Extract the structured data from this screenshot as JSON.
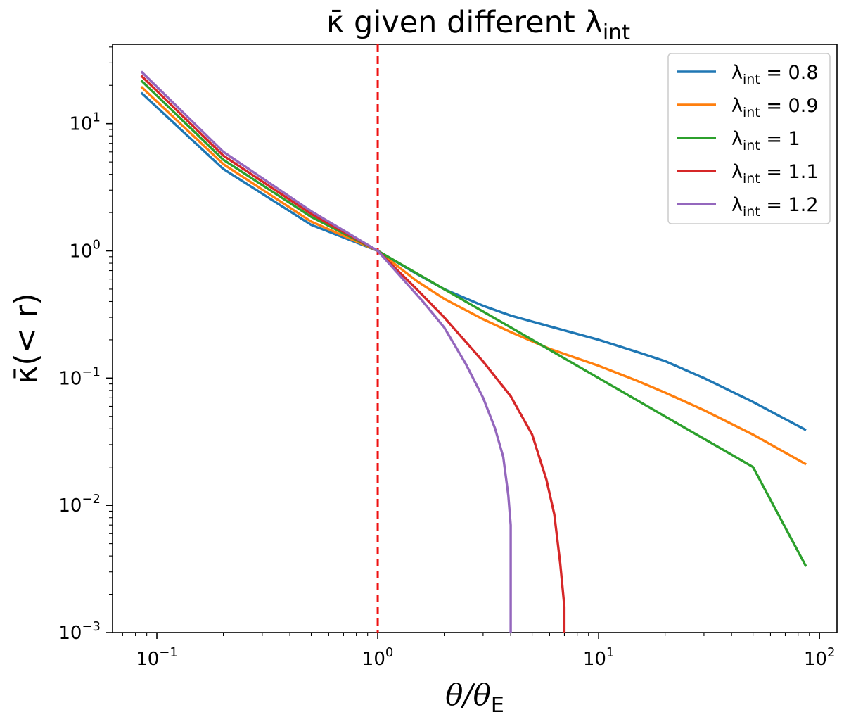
{
  "chart_data": {
    "type": "line",
    "title_main": "κ̄ given different λ",
    "title_sub": "int",
    "xlabel_theta": "θ/θ",
    "xlabel_sub": "E",
    "ylabel": "κ̄(< r)",
    "xscale": "log",
    "yscale": "log",
    "xlim": [
      0.063,
      120
    ],
    "ylim": [
      0.001,
      42
    ],
    "xticks": [
      {
        "base": "10",
        "exp": "−1",
        "value": 0.1
      },
      {
        "base": "10",
        "exp": "0",
        "value": 1
      },
      {
        "base": "10",
        "exp": "1",
        "value": 10
      },
      {
        "base": "10",
        "exp": "2",
        "value": 100
      }
    ],
    "yticks": [
      {
        "base": "10",
        "exp": "−3",
        "value": 0.001
      },
      {
        "base": "10",
        "exp": "−2",
        "value": 0.01
      },
      {
        "base": "10",
        "exp": "−1",
        "value": 0.1
      },
      {
        "base": "10",
        "exp": "0",
        "value": 1
      },
      {
        "base": "10",
        "exp": "1",
        "value": 10
      }
    ],
    "reference_line": {
      "x": 1,
      "color": "#ee1111",
      "style": "dashed"
    },
    "legend": {
      "position": "top-right",
      "prefix": "λ",
      "prefix_sub": "int"
    },
    "series": [
      {
        "name": "0.8",
        "label": " = 0.8",
        "color": "#1f77b4",
        "x": [
          0.085,
          0.2,
          0.5,
          1,
          1.5,
          2,
          3,
          4,
          6,
          10,
          15,
          20,
          30,
          50,
          87
        ],
        "y": [
          17.5,
          4.4,
          1.6,
          1.0,
          0.66,
          0.5,
          0.37,
          0.31,
          0.255,
          0.2,
          0.16,
          0.136,
          0.1,
          0.065,
          0.039
        ]
      },
      {
        "name": "0.9",
        "label": " = 0.9",
        "color": "#ff7f0e",
        "x": [
          0.085,
          0.2,
          0.5,
          1,
          1.5,
          2,
          3,
          4,
          6,
          10,
          15,
          20,
          30,
          50,
          87
        ],
        "y": [
          19.5,
          4.8,
          1.7,
          1.0,
          0.58,
          0.42,
          0.29,
          0.23,
          0.17,
          0.125,
          0.095,
          0.077,
          0.056,
          0.036,
          0.021
        ]
      },
      {
        "name": "1",
        "label": " = 1",
        "color": "#2ca02c",
        "x": [
          0.085,
          0.2,
          0.5,
          1,
          2,
          5,
          10,
          20,
          50,
          87
        ],
        "y": [
          21.8,
          5.2,
          1.85,
          1.0,
          0.5,
          0.2,
          0.1,
          0.05,
          0.02,
          0.0033
        ]
      },
      {
        "name": "1.1",
        "label": " = 1.1",
        "color": "#d62728",
        "x": [
          0.085,
          0.2,
          0.5,
          1,
          1.5,
          2,
          3,
          4,
          5,
          5.8,
          6.3,
          6.7,
          7.0,
          7.0
        ],
        "y": [
          23.8,
          5.6,
          1.95,
          1.0,
          0.5,
          0.3,
          0.135,
          0.072,
          0.036,
          0.016,
          0.0085,
          0.0035,
          0.0016,
          0.001
        ]
      },
      {
        "name": "1.2",
        "label": " = 1.2",
        "color": "#9467bd",
        "x": [
          0.085,
          0.2,
          0.5,
          1,
          1.3,
          1.6,
          2,
          2.5,
          3.0,
          3.4,
          3.7,
          3.9,
          4.0,
          4.0
        ],
        "y": [
          25.7,
          6.0,
          2.05,
          1.0,
          0.6,
          0.4,
          0.25,
          0.13,
          0.07,
          0.04,
          0.024,
          0.012,
          0.007,
          0.001
        ]
      }
    ]
  }
}
